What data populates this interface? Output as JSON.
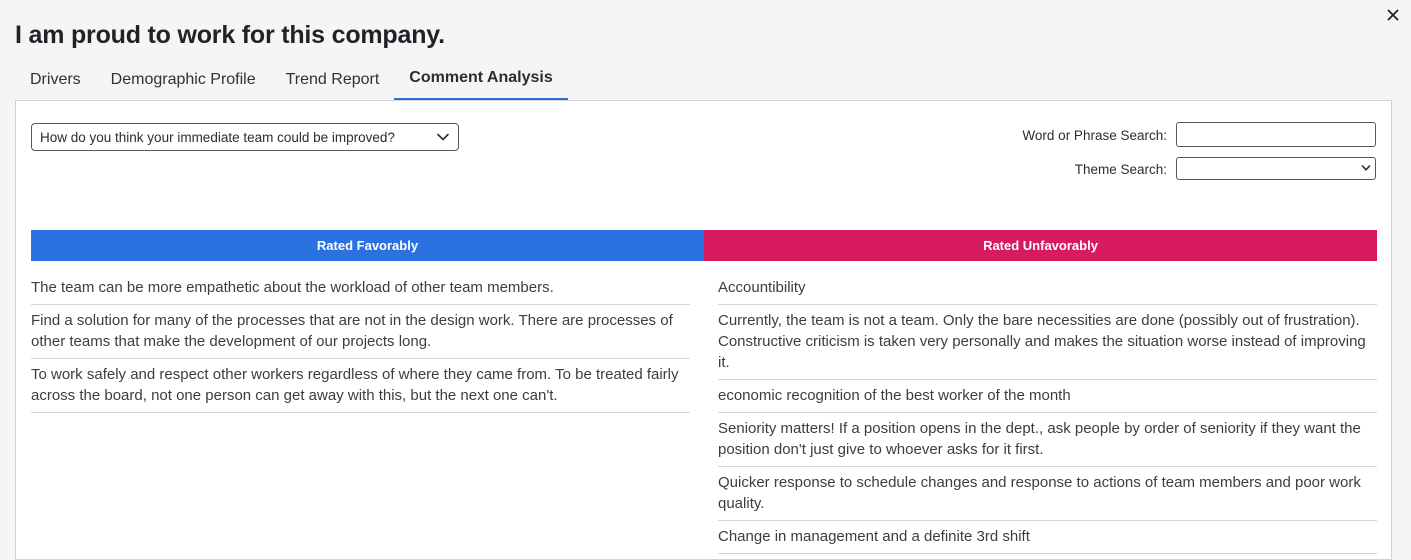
{
  "colors": {
    "favorable": "#2b72e0",
    "unfavorable": "#d81b60",
    "active_tab": "#2a6fdb"
  },
  "dialog": {
    "title": "I am proud to work for this company.",
    "close_icon": "close-icon"
  },
  "tabs": [
    {
      "label": "Drivers",
      "active": false
    },
    {
      "label": "Demographic Profile",
      "active": false
    },
    {
      "label": "Trend Report",
      "active": false
    },
    {
      "label": "Comment Analysis",
      "active": true
    }
  ],
  "filters": {
    "question_selected": "How do you think your immediate team could be improved?",
    "word_search_label": "Word or Phrase Search:",
    "word_search_value": "",
    "theme_search_label": "Theme Search:",
    "theme_search_value": ""
  },
  "favorable": {
    "header": "Rated Favorably",
    "comments": [
      "The team can be more empathetic about the workload of other team members.",
      "Find a solution for many of the processes that are not in the design work. There are processes of other teams that make the development of our projects long.",
      "To work safely and respect other workers regardless of where they came from. To be treated fairly across the board, not one person can get away with this, but the next one can't."
    ]
  },
  "unfavorable": {
    "header": "Rated Unfavorably",
    "comments": [
      "Accountibility",
      "Currently, the team is not a team. Only the bare necessities are done (possibly out of frustration). Constructive criticism is taken very personally and makes the situation worse instead of improving it.",
      "economic recognition of the best worker of the month",
      "Seniority matters! If a position opens in the dept., ask people by order of seniority if they want the position don't just give to whoever asks for it first.",
      "Quicker response to schedule changes and response to actions of team members and poor work quality.",
      "Change in management and a definite 3rd shift"
    ]
  }
}
